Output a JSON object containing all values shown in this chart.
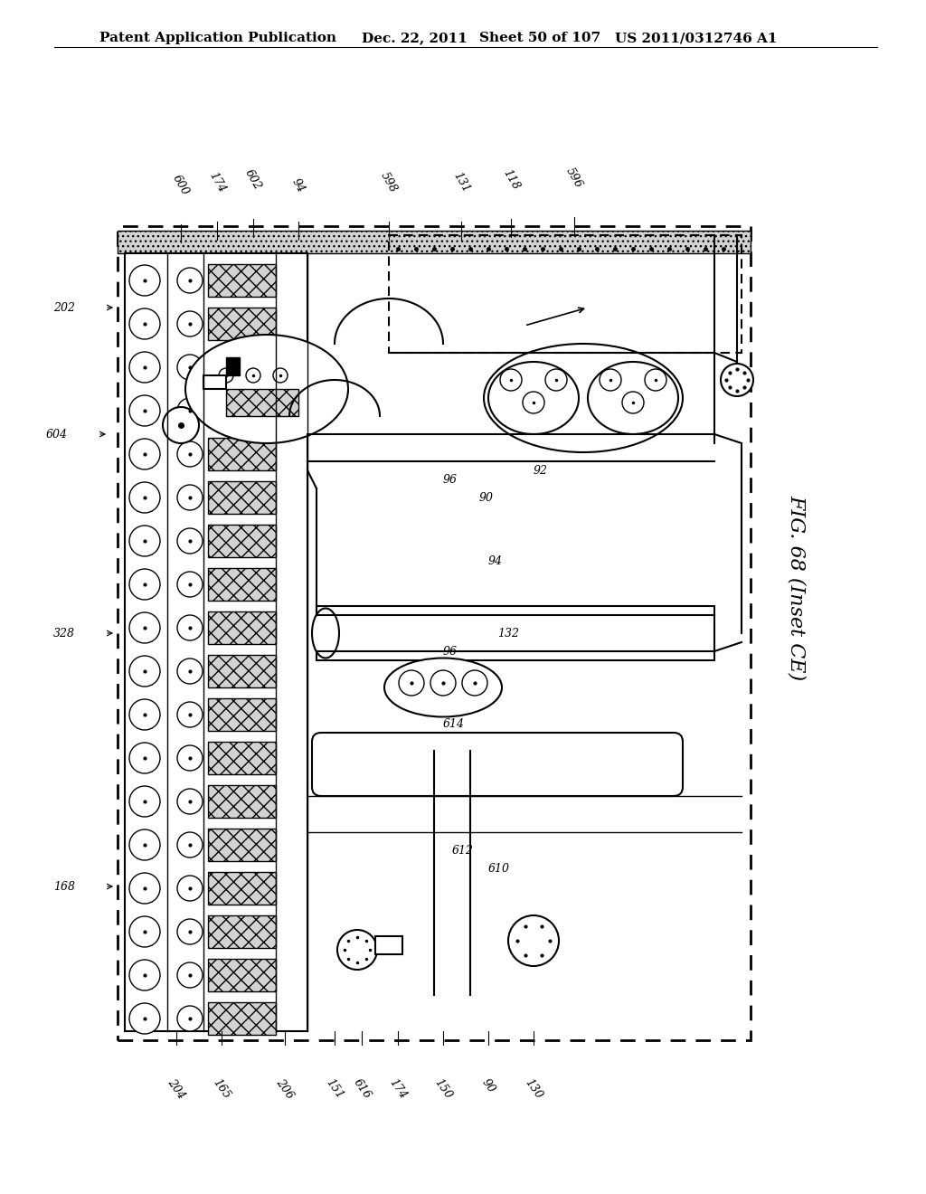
{
  "title": "Patent Application Publication",
  "date": "Dec. 22, 2011",
  "sheet": "Sheet 50 of 107",
  "patent_num": "US 2011/0312746 A1",
  "fig_label": "FIG. 68 (Inset CE)",
  "bg_color": "#ffffff",
  "border_color": "#000000",
  "header_fontsize": 11,
  "label_fontsize": 10,
  "fig_label_fontsize": 16
}
